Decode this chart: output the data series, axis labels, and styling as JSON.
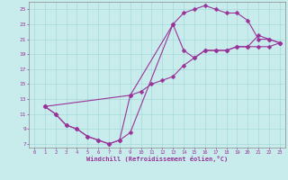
{
  "xlabel": "Windchill (Refroidissement éolien,°C)",
  "bg_color": "#c8ecec",
  "line_color": "#993399",
  "marker_color": "#993399",
  "grid_color": "#a8d8d8",
  "xlim": [
    -0.5,
    23.5
  ],
  "ylim": [
    6.5,
    26.0
  ],
  "xticks": [
    0,
    1,
    2,
    3,
    4,
    5,
    6,
    7,
    8,
    9,
    10,
    11,
    12,
    13,
    14,
    15,
    16,
    17,
    18,
    19,
    20,
    21,
    22,
    23
  ],
  "yticks": [
    7,
    9,
    11,
    13,
    15,
    17,
    19,
    21,
    23,
    25
  ],
  "curve_upper_x": [
    1,
    9,
    13,
    14,
    15,
    16,
    17,
    18,
    19,
    20,
    21,
    22,
    23
  ],
  "curve_upper_y": [
    12.0,
    13.5,
    23.0,
    24.5,
    25.0,
    25.5,
    25.0,
    24.5,
    24.5,
    23.5,
    21.0,
    21.0,
    20.5
  ],
  "curve_mid_x": [
    1,
    2,
    3,
    4,
    5,
    6,
    7,
    8,
    9,
    10,
    11,
    12,
    13,
    14,
    15,
    16,
    17,
    18,
    19,
    20,
    21,
    22,
    23
  ],
  "curve_mid_y": [
    12.0,
    11.0,
    9.5,
    9.0,
    8.0,
    7.5,
    7.0,
    7.5,
    13.5,
    14.0,
    15.0,
    15.5,
    16.0,
    17.5,
    18.5,
    19.5,
    19.5,
    19.5,
    20.0,
    20.0,
    20.0,
    20.0,
    20.5
  ],
  "curve_low_x": [
    1,
    2,
    3,
    4,
    5,
    6,
    7,
    8,
    9,
    13,
    14,
    15,
    16,
    17,
    18,
    19,
    20,
    21,
    22,
    23
  ],
  "curve_low_y": [
    12.0,
    11.0,
    9.5,
    9.0,
    8.0,
    7.5,
    7.0,
    7.5,
    8.5,
    23.0,
    19.5,
    18.5,
    19.5,
    19.5,
    19.5,
    20.0,
    20.0,
    21.5,
    21.0,
    20.5
  ]
}
